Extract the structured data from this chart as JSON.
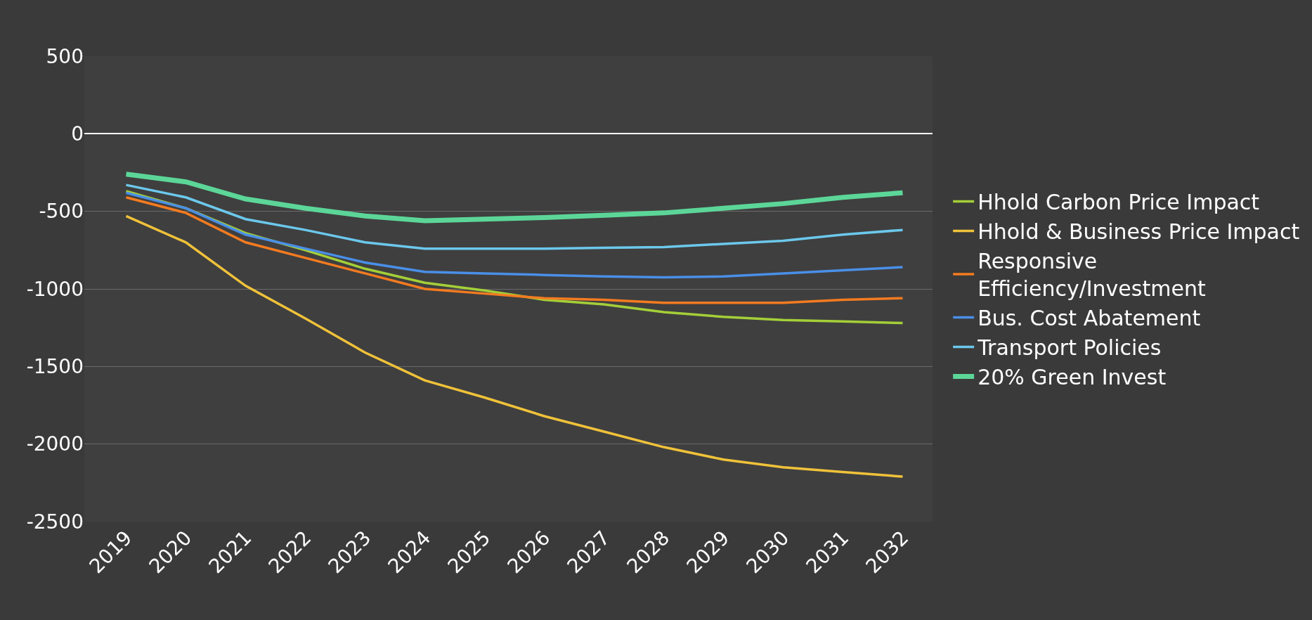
{
  "chart_data": {
    "type": "line",
    "categories": [
      "2019",
      "2020",
      "2021",
      "2022",
      "2023",
      "2024",
      "2025",
      "2026",
      "2027",
      "2028",
      "2029",
      "2030",
      "2031",
      "2032"
    ],
    "ylim": [
      -2500,
      500
    ],
    "yticks": [
      500,
      0,
      -500,
      -1000,
      -1500,
      -2000,
      -2500
    ],
    "grid": "y",
    "legend": "right",
    "marker": "none",
    "line_style": "solid",
    "series": [
      {
        "name": "Hhold Carbon Price Impact",
        "color": "#a4cf38",
        "values": [
          -370,
          -480,
          -640,
          -750,
          -870,
          -960,
          -1010,
          -1070,
          -1100,
          -1150,
          -1180,
          -1200,
          -1210,
          -1220
        ]
      },
      {
        "name": "Hhold & Business Price Impact",
        "color": "#f0c23a",
        "values": [
          -530,
          -700,
          -980,
          -1190,
          -1410,
          -1590,
          -1700,
          -1820,
          -1920,
          -2020,
          -2100,
          -2150,
          -2180,
          -2210
        ]
      },
      {
        "name": "Responsive Efficiency/Investment",
        "color": "#f47b20",
        "values": [
          -410,
          -510,
          -700,
          -800,
          -900,
          -1000,
          -1030,
          -1060,
          -1070,
          -1090,
          -1090,
          -1090,
          -1070,
          -1060
        ]
      },
      {
        "name": "Bus. Cost Abatement",
        "color": "#4a8fe8",
        "values": [
          -380,
          -480,
          -650,
          -740,
          -830,
          -890,
          -900,
          -910,
          -920,
          -925,
          -920,
          -900,
          -880,
          -860
        ]
      },
      {
        "name": "Transport Policies",
        "color": "#6cc8ec",
        "values": [
          -330,
          -410,
          -550,
          -620,
          -700,
          -740,
          -740,
          -740,
          -735,
          -730,
          -710,
          -690,
          -650,
          -620
        ]
      },
      {
        "name": "20% Green Invest",
        "color": "#5cd698",
        "values": [
          -260,
          -310,
          -420,
          -480,
          -530,
          -560,
          -550,
          -540,
          -525,
          -510,
          -480,
          -450,
          -410,
          -380
        ]
      }
    ]
  }
}
